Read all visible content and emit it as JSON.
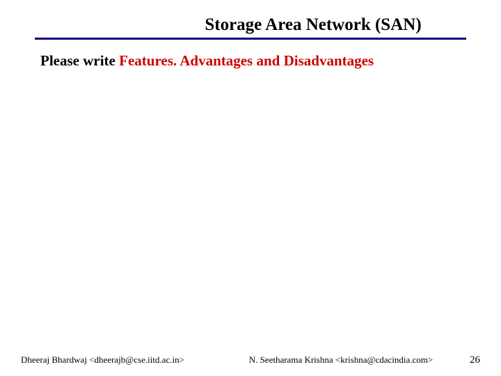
{
  "slide": {
    "title": "Storage Area Network (SAN)",
    "title_color": "#000000",
    "title_fontsize": 25,
    "underline_color": "#000080",
    "prompt_prefix": "Please write ",
    "prompt_highlight": "Features. Advantages and Disadvantages",
    "prompt_prefix_color": "#000000",
    "prompt_highlight_color": "#cc0000",
    "prompt_fontsize": 21,
    "background_color": "#ffffff"
  },
  "footer": {
    "author1": "Dheeraj Bhardwaj <dheerajb@cse.iitd.ac.in>",
    "author2": "N. Seetharama Krishna <krishna@cdacindia.com>",
    "page_number": "26",
    "fontsize": 13,
    "color": "#000000"
  }
}
